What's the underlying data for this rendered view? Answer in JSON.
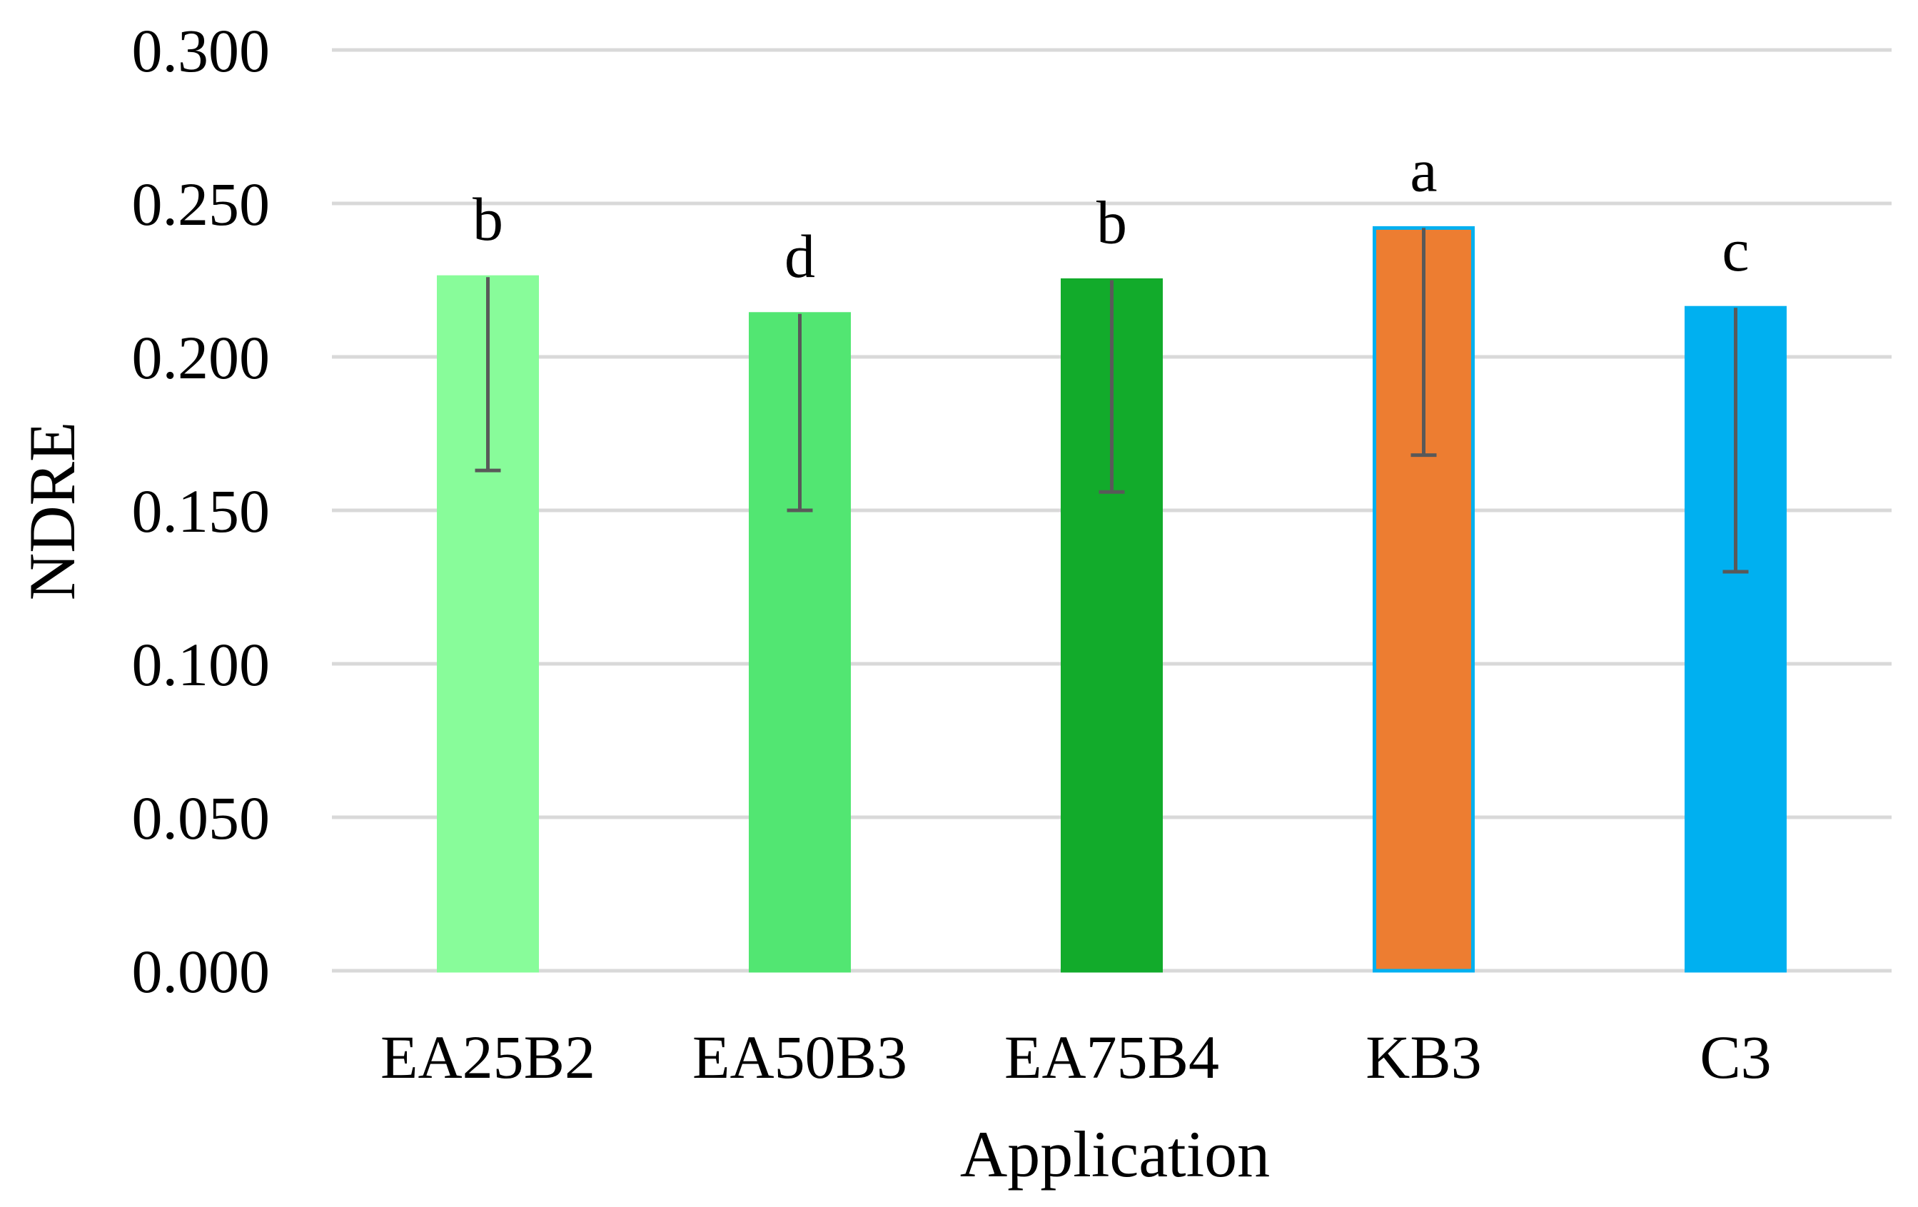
{
  "chart_data": {
    "type": "bar",
    "title": "",
    "xlabel": "Application",
    "ylabel": "NDRE",
    "ylim": [
      0,
      0.3
    ],
    "yticks": [
      "0.000",
      "0.050",
      "0.100",
      "0.150",
      "0.200",
      "0.250",
      "0.300"
    ],
    "grid": true,
    "legend": "none",
    "categories": [
      "EA25B2",
      "EA50B3",
      "EA75B4",
      "KB3",
      "C3"
    ],
    "values": [
      0.226,
      0.214,
      0.225,
      0.242,
      0.216
    ],
    "error_lower": [
      0.163,
      0.15,
      0.156,
      0.168,
      0.13
    ],
    "significance": [
      "b",
      "d",
      "b",
      "a",
      "c"
    ],
    "colors": [
      "#88fc9a",
      "#52e672",
      "#12ab2b",
      "#ed7d31",
      "#00b0f0"
    ],
    "outline_colors": [
      "#88fc9a",
      "#52e672",
      "#12ab2b",
      "#00b0f0",
      "#00b0f0"
    ]
  }
}
